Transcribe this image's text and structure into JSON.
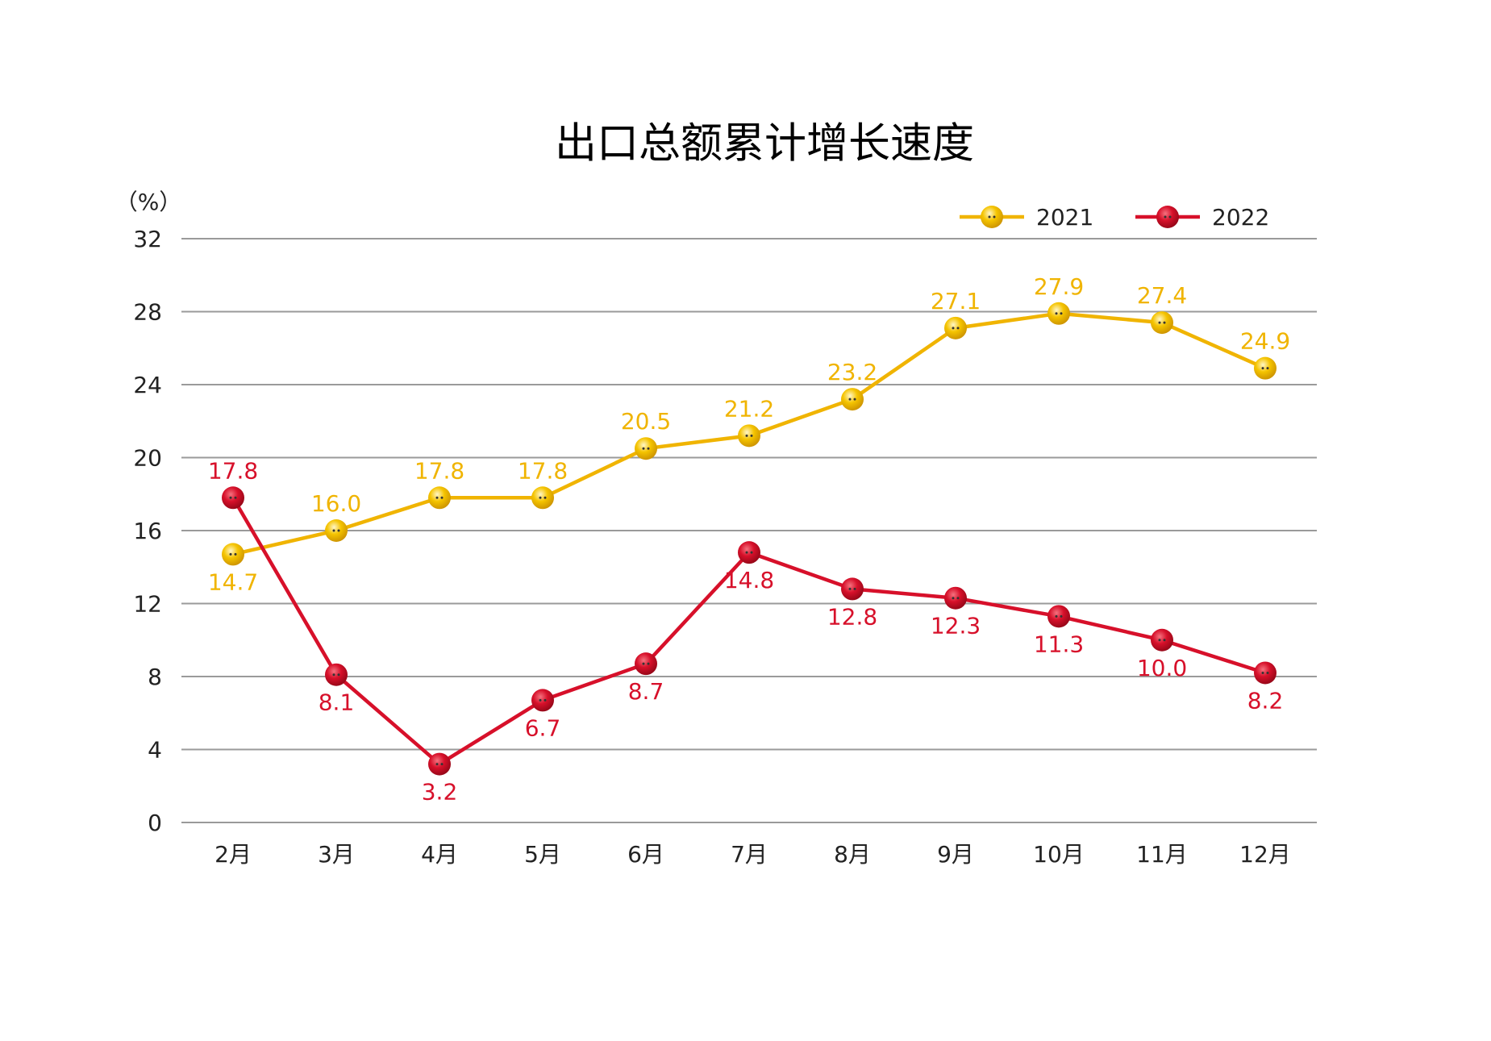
{
  "chart_data": {
    "type": "line",
    "title": "出口总额累计增长速度",
    "y_unit": "（%）",
    "categories": [
      "2月",
      "3月",
      "4月",
      "5月",
      "6月",
      "7月",
      "8月",
      "9月",
      "10月",
      "11月",
      "12月"
    ],
    "series": [
      {
        "name": "2021",
        "color": "#f0b400",
        "values": [
          14.7,
          16.0,
          17.8,
          17.8,
          20.5,
          21.2,
          23.2,
          27.1,
          27.9,
          27.4,
          24.9
        ],
        "value_labels": [
          "14.7",
          "16.0",
          "17.8",
          "17.8",
          "20.5",
          "21.2",
          "23.2",
          "27.1",
          "27.9",
          "27.4",
          "24.9"
        ]
      },
      {
        "name": "2022",
        "color": "#d7102a",
        "values": [
          17.8,
          8.1,
          3.2,
          6.7,
          8.7,
          14.8,
          12.8,
          12.3,
          11.3,
          10.0,
          8.2
        ],
        "value_labels": [
          "17.8",
          "8.1",
          "3.2",
          "6.7",
          "8.7",
          "14.8",
          "12.8",
          "12.3",
          "11.3",
          "10.0",
          "8.2"
        ]
      }
    ],
    "ylim": [
      0,
      32
    ],
    "yticks": [
      0,
      4,
      8,
      12,
      16,
      20,
      24,
      28,
      32
    ],
    "grid": true,
    "legend": "top-right"
  }
}
